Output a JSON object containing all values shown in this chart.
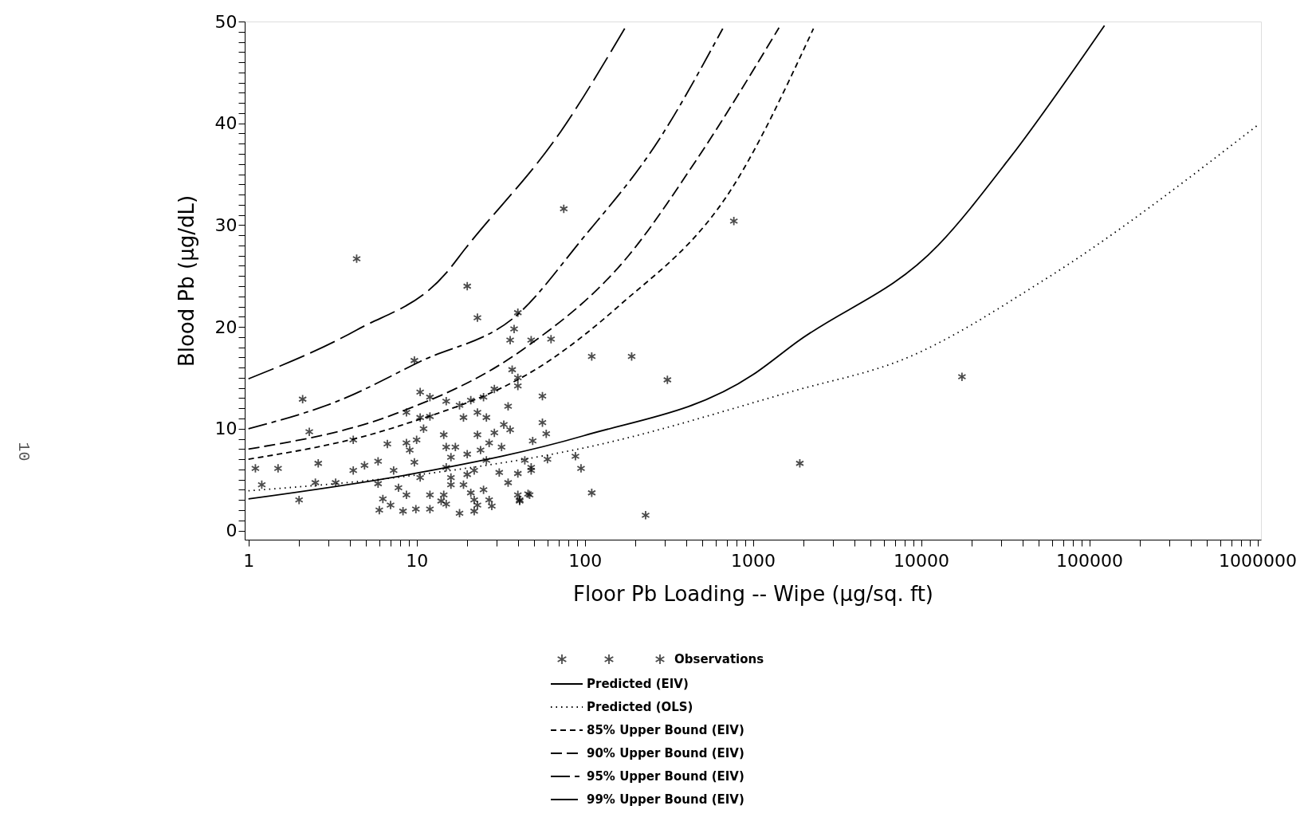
{
  "chart_data": {
    "type": "scatter",
    "xlabel": "Floor Pb Loading -- Wipe (μg/sq. ft)",
    "ylabel": "Blood Pb (μg/dL)",
    "annotations": [
      "10"
    ],
    "log": "x",
    "grid": false,
    "legend": "bottom",
    "xlim": [
      0.95,
      1050000
    ],
    "ylim": [
      -0.9,
      50
    ],
    "xticks": [
      1,
      {
        "value": 2,
        "label": null
      },
      {
        "value": 3,
        "label": null
      },
      {
        "value": 4,
        "label": null
      },
      {
        "value": 5,
        "label": null
      },
      {
        "value": 6,
        "label": null
      },
      {
        "value": 7,
        "label": null
      },
      {
        "value": 8,
        "label": null
      },
      {
        "value": 9,
        "label": null
      },
      10,
      {
        "value": 20,
        "label": null
      },
      {
        "value": 30,
        "label": null
      },
      {
        "value": 40,
        "label": null
      },
      {
        "value": 50,
        "label": null
      },
      {
        "value": 60,
        "label": null
      },
      {
        "value": 70,
        "label": null
      },
      {
        "value": 80,
        "label": null
      },
      {
        "value": 90,
        "label": null
      },
      100,
      {
        "value": 200,
        "label": null
      },
      {
        "value": 300,
        "label": null
      },
      {
        "value": 400,
        "label": null
      },
      {
        "value": 500,
        "label": null
      },
      {
        "value": 600,
        "label": null
      },
      {
        "value": 700,
        "label": null
      },
      {
        "value": 800,
        "label": null
      },
      {
        "value": 900,
        "label": null
      },
      1000,
      {
        "value": 2000,
        "label": null
      },
      {
        "value": 3000,
        "label": null
      },
      {
        "value": 4000,
        "label": null
      },
      {
        "value": 5000,
        "label": null
      },
      {
        "value": 6000,
        "label": null
      },
      {
        "value": 7000,
        "label": null
      },
      {
        "value": 8000,
        "label": null
      },
      {
        "value": 9000,
        "label": null
      },
      10000,
      {
        "value": 20000,
        "label": null
      },
      {
        "value": 30000,
        "label": null
      },
      {
        "value": 40000,
        "label": null
      },
      {
        "value": 50000,
        "label": null
      },
      {
        "value": 60000,
        "label": null
      },
      {
        "value": 70000,
        "label": null
      },
      {
        "value": 80000,
        "label": null
      },
      {
        "value": 90000,
        "label": null
      },
      100000,
      {
        "value": 200000,
        "label": null
      },
      {
        "value": 300000,
        "label": null
      },
      {
        "value": 400000,
        "label": null
      },
      {
        "value": 500000,
        "label": null
      },
      {
        "value": 600000,
        "label": null
      },
      {
        "value": 700000,
        "label": null
      },
      {
        "value": 800000,
        "label": null
      },
      {
        "value": 900000,
        "label": null
      },
      1000000
    ],
    "yticks": [
      0,
      {
        "value": 1,
        "label": null
      },
      {
        "value": 2,
        "label": null
      },
      {
        "value": 3,
        "label": null
      },
      {
        "value": 4,
        "label": null
      },
      {
        "value": 5,
        "label": null
      },
      {
        "value": 6,
        "label": null
      },
      {
        "value": 7,
        "label": null
      },
      {
        "value": 8,
        "label": null
      },
      {
        "value": 9,
        "label": null
      },
      10,
      {
        "value": 11,
        "label": null
      },
      {
        "value": 12,
        "label": null
      },
      {
        "value": 13,
        "label": null
      },
      {
        "value": 14,
        "label": null
      },
      {
        "value": 15,
        "label": null
      },
      {
        "value": 16,
        "label": null
      },
      {
        "value": 17,
        "label": null
      },
      {
        "value": 18,
        "label": null
      },
      {
        "value": 19,
        "label": null
      },
      20,
      {
        "value": 21,
        "label": null
      },
      {
        "value": 22,
        "label": null
      },
      {
        "value": 23,
        "label": null
      },
      {
        "value": 24,
        "label": null
      },
      {
        "value": 25,
        "label": null
      },
      {
        "value": 26,
        "label": null
      },
      {
        "value": 27,
        "label": null
      },
      {
        "value": 28,
        "label": null
      },
      {
        "value": 29,
        "label": null
      },
      30,
      {
        "value": 31,
        "label": null
      },
      {
        "value": 32,
        "label": null
      },
      {
        "value": 33,
        "label": null
      },
      {
        "value": 34,
        "label": null
      },
      {
        "value": 35,
        "label": null
      },
      {
        "value": 36,
        "label": null
      },
      {
        "value": 37,
        "label": null
      },
      {
        "value": 38,
        "label": null
      },
      {
        "value": 39,
        "label": null
      },
      40,
      {
        "value": 41,
        "label": null
      },
      {
        "value": 42,
        "label": null
      },
      {
        "value": 43,
        "label": null
      },
      {
        "value": 44,
        "label": null
      },
      {
        "value": 45,
        "label": null
      },
      {
        "value": 46,
        "label": null
      },
      {
        "value": 47,
        "label": null
      },
      {
        "value": 48,
        "label": null
      },
      {
        "value": 49,
        "label": null
      },
      50
    ],
    "series": [
      {
        "name": "Observations",
        "marker": "cross",
        "color": "#000000",
        "x": [
          4.4,
          75,
          770,
          20,
          23,
          40,
          38,
          36,
          48,
          63,
          9.7,
          110,
          190,
          310,
          17500,
          1900,
          230,
          110,
          6.0,
          6.3,
          7.0,
          8.3,
          9.9,
          12,
          15,
          18,
          22,
          28,
          41,
          47,
          2.0,
          2.5,
          3.3,
          1.2,
          1.1,
          1.5,
          2.6,
          4.2,
          4.9,
          5.9,
          6.7,
          4.2,
          2.3,
          2.1,
          5.9,
          7.3,
          7.8,
          8.7,
          8.7,
          9.1,
          9.7,
          10.5,
          10,
          11,
          8.7,
          10.5,
          12,
          10.5,
          12,
          14.5,
          15,
          16,
          15,
          16,
          16,
          14.5,
          12,
          14,
          17,
          18,
          15,
          19,
          20,
          21,
          25,
          29,
          23,
          26,
          23,
          27,
          29,
          24,
          26,
          22,
          20,
          19,
          21,
          22,
          25,
          27,
          23,
          31,
          32,
          33,
          36,
          35,
          35,
          40,
          44,
          48,
          49,
          56,
          59,
          56,
          60,
          88,
          95,
          40,
          46,
          41,
          37,
          40,
          40,
          48
        ],
        "values": [
          26.7,
          31.6,
          30.4,
          24.0,
          20.9,
          21.4,
          19.8,
          18.7,
          18.7,
          18.8,
          16.7,
          17.1,
          17.1,
          14.8,
          15.1,
          6.6,
          1.5,
          3.7,
          2.0,
          3.1,
          2.5,
          1.9,
          2.1,
          2.1,
          2.6,
          1.7,
          1.9,
          2.4,
          3.0,
          3.5,
          3.0,
          4.7,
          4.7,
          4.5,
          6.1,
          6.1,
          6.6,
          5.9,
          6.4,
          6.8,
          8.5,
          8.9,
          9.7,
          12.9,
          4.6,
          5.9,
          4.2,
          3.5,
          8.6,
          7.9,
          6.7,
          5.2,
          8.9,
          10.0,
          11.6,
          11.1,
          11.2,
          13.6,
          13.1,
          9.4,
          8.2,
          7.2,
          6.2,
          5.2,
          4.5,
          3.5,
          3.5,
          2.9,
          8.2,
          12.3,
          12.7,
          11.1,
          7.5,
          12.8,
          13.1,
          13.9,
          11.6,
          11.1,
          9.4,
          8.6,
          9.6,
          7.9,
          6.9,
          5.9,
          5.5,
          4.5,
          3.7,
          3.0,
          4.0,
          3.0,
          2.5,
          5.7,
          8.2,
          10.4,
          9.9,
          12.2,
          4.7,
          5.6,
          6.9,
          5.9,
          8.8,
          10.6,
          9.5,
          13.2,
          7.0,
          7.3,
          6.1,
          3.5,
          3.6,
          2.9,
          15.8,
          15.0,
          14.2,
          6.2
        ]
      },
      {
        "name": "Predicted (EIV)",
        "type": "line",
        "line_style": "solid",
        "color": "#000000",
        "x": [
          1,
          10.5,
          98,
          1000,
          1820,
          12600,
          33000,
          123000
        ],
        "values": [
          3.1,
          5.7,
          9.3,
          15.3,
          18.5,
          28.0,
          36.4,
          49.6
        ]
      },
      {
        "name": "Predicted (OLS)",
        "type": "line",
        "line_style": "dotted",
        "color": "#000000",
        "x": [
          1,
          10.5,
          98,
          1830,
          7800,
          53700,
          1000000
        ],
        "values": [
          3.9,
          5.5,
          8.1,
          13.8,
          16.8,
          24.6,
          39.8
        ]
      },
      {
        "name": "85% Upper Bound (EIV)",
        "type": "line",
        "line_style": "dashed",
        "color": "#000000",
        "x": [
          1,
          7.3,
          63,
          158,
          762,
          2290
        ],
        "values": [
          7.0,
          10.1,
          16.8,
          22.0,
          33.8,
          49.3
        ]
      },
      {
        "name": "90% Upper Bound (EIV)",
        "type": "line",
        "line_style": "dashed",
        "color": "#000000",
        "x": [
          1,
          7.3,
          43,
          182,
          457,
          1430
        ],
        "values": [
          8.0,
          11.4,
          17.8,
          27.0,
          36.3,
          49.4
        ]
      },
      {
        "name": "95% Upper Bound (EIV)",
        "type": "line",
        "line_style": "dashed",
        "color": "#000000",
        "x": [
          1,
          3.5,
          10.5,
          41,
          94,
          269,
          661
        ],
        "values": [
          10.0,
          12.8,
          16.6,
          21.4,
          28.4,
          38.1,
          49.3
        ]
      },
      {
        "name": "99% Upper Bound (EIV)",
        "type": "line",
        "line_style": "dashed",
        "color": "#000000",
        "x": [
          1,
          4.4,
          15,
          19.5,
          72,
          174
        ],
        "values": [
          14.9,
          19.7,
          25.3,
          27.7,
          39.2,
          49.4
        ]
      }
    ]
  }
}
